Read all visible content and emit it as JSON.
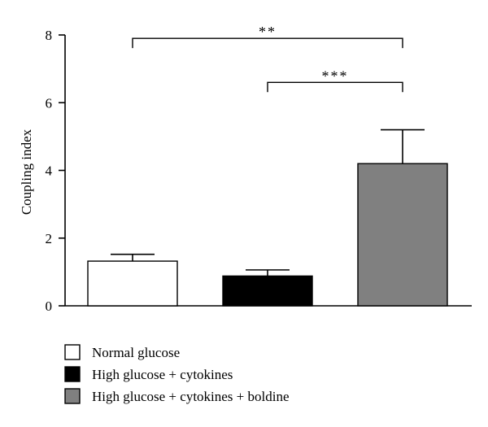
{
  "chart_data": {
    "type": "bar",
    "title": "",
    "xlabel": "",
    "ylabel": "Coupling index",
    "ylim": [
      0,
      8
    ],
    "yticks": [
      0,
      2,
      4,
      6,
      8
    ],
    "categories": [
      "Normal glucose",
      "High glucose + cytokines",
      "High glucose + cytokines + boldine"
    ],
    "values": [
      1.32,
      0.88,
      4.2
    ],
    "errors": [
      0.2,
      0.18,
      1.0
    ],
    "colors": [
      "#ffffff",
      "#000000",
      "#808080"
    ],
    "grid": false,
    "legend": {
      "position": "bottom-left",
      "entries": [
        "Normal glucose",
        "High glucose + cytokines",
        "High glucose + cytokines + boldine"
      ]
    },
    "significance": [
      {
        "from": 0,
        "to": 2,
        "label": "**",
        "level": 7.9
      },
      {
        "from": 1,
        "to": 2,
        "label": "***",
        "level": 6.6
      }
    ]
  }
}
